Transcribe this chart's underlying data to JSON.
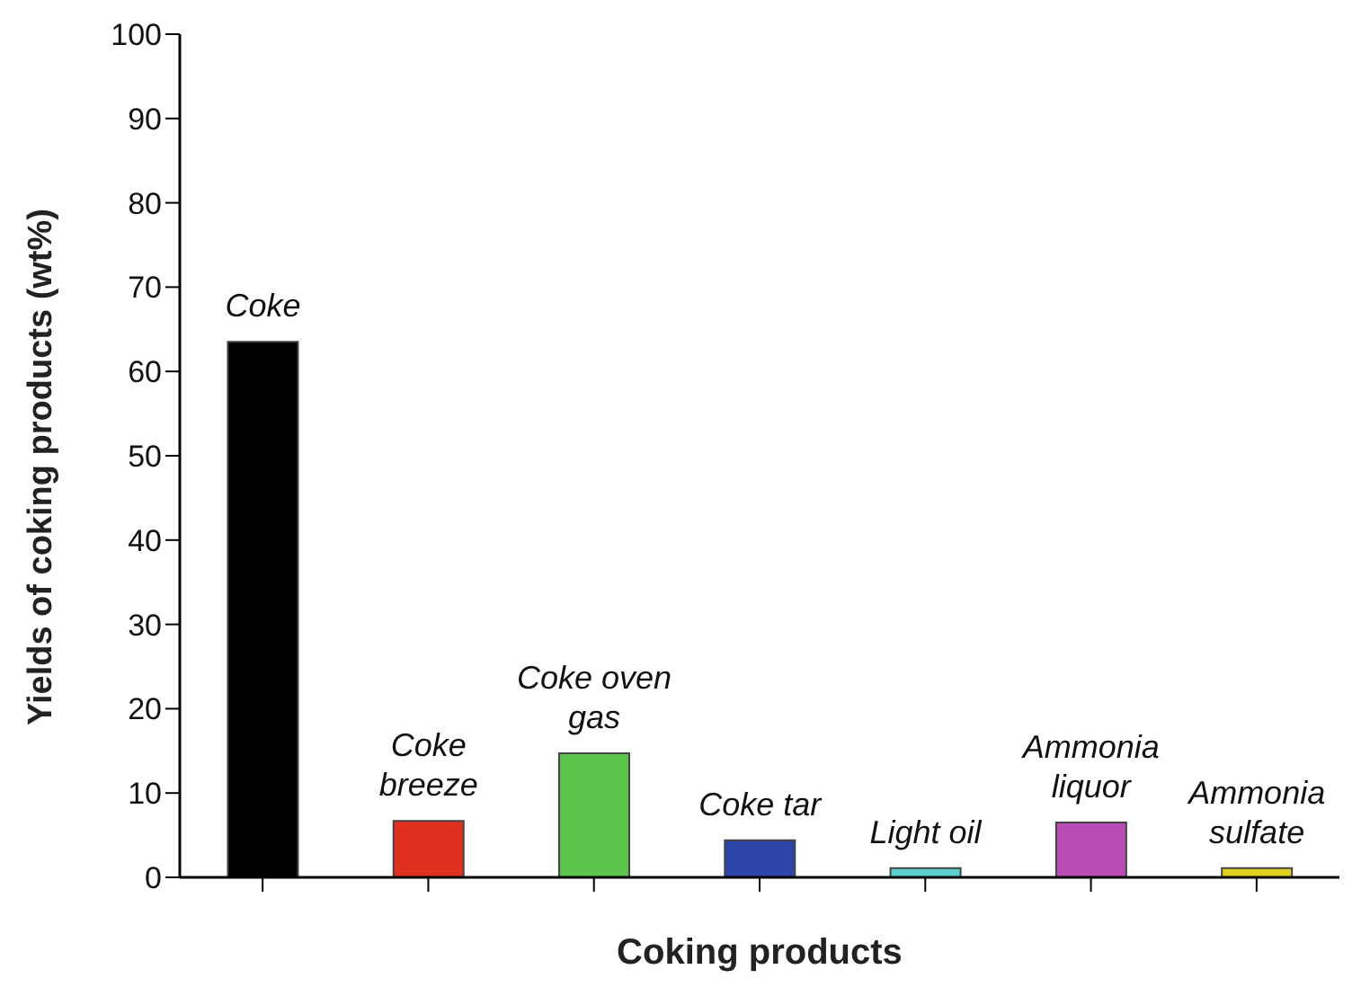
{
  "chart_data": {
    "type": "bar",
    "xlabel": "Coking products",
    "ylabel": "Yields of coking products (wt%)",
    "categories": [
      "Coke",
      "Coke breeze",
      "Coke oven gas",
      "Coke tar",
      "Light oil",
      "Ammonia liquor",
      "Ammonia sulfate"
    ],
    "values": [
      63.5,
      6.7,
      14.7,
      4.4,
      1.1,
      6.5,
      1.1
    ],
    "colors": [
      "#000000",
      "#e03020",
      "#5cc44c",
      "#2d44a8",
      "#5ccfcf",
      "#b84cb4",
      "#e0d020"
    ],
    "ylim": [
      0,
      100
    ],
    "yticks": [
      0,
      10,
      20,
      30,
      40,
      50,
      60,
      70,
      80,
      90,
      100
    ],
    "grid": false,
    "tick_labels": "y"
  }
}
